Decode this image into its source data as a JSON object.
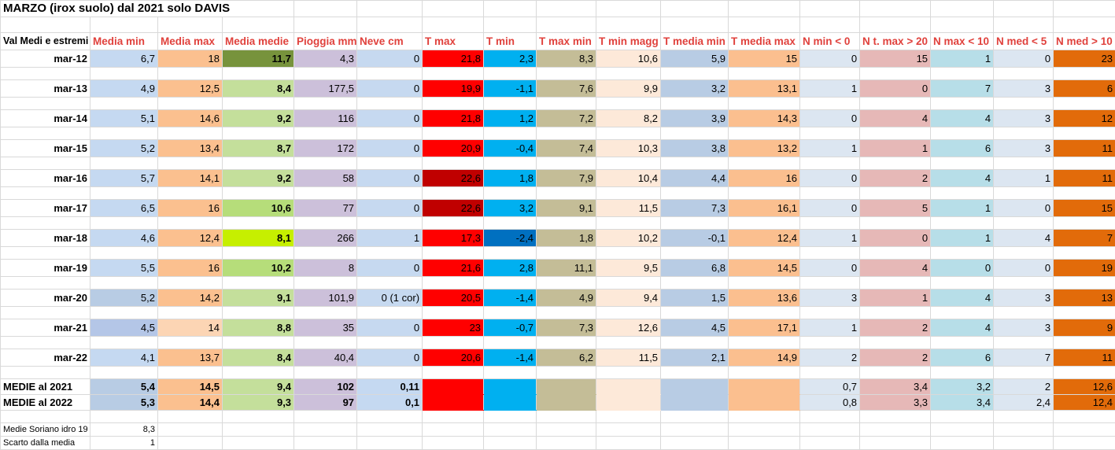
{
  "title": "MARZO (irox suolo) dal 2021 solo DAVIS",
  "row_header": "Val Medi e estremi",
  "columns": [
    "Media min",
    "Media max",
    "Media medie",
    "Pioggia mm",
    "Neve cm",
    "T max",
    "T min",
    "T max min",
    "T min magg",
    "T media min",
    "T media max",
    "N min < 0",
    "N t. max > 20",
    "N max < 10",
    "N med < 5",
    "N med > 10"
  ],
  "rows": [
    {
      "date": "mar-12",
      "v": [
        "6,7",
        "18",
        "11,7",
        "4,3",
        "0",
        "21,8",
        "2,3",
        "8,3",
        "10,6",
        "5,9",
        "15",
        "0",
        "15",
        "1",
        "0",
        "23"
      ]
    },
    {
      "date": "mar-13",
      "v": [
        "4,9",
        "12,5",
        "8,4",
        "177,5",
        "0",
        "19,9",
        "-1,1",
        "7,6",
        "9,9",
        "3,2",
        "13,1",
        "1",
        "0",
        "7",
        "3",
        "6"
      ]
    },
    {
      "date": "mar-14",
      "v": [
        "5,1",
        "14,6",
        "9,2",
        "116",
        "0",
        "21,8",
        "1,2",
        "7,2",
        "8,2",
        "3,9",
        "14,3",
        "0",
        "4",
        "4",
        "3",
        "12"
      ]
    },
    {
      "date": "mar-15",
      "v": [
        "5,2",
        "13,4",
        "8,7",
        "172",
        "0",
        "20,9",
        "-0,4",
        "7,4",
        "10,3",
        "3,8",
        "13,2",
        "1",
        "1",
        "6",
        "3",
        "11"
      ]
    },
    {
      "date": "mar-16",
      "v": [
        "5,7",
        "14,1",
        "9,2",
        "58",
        "0",
        "22,6",
        "1,8",
        "7,9",
        "10,4",
        "4,4",
        "16",
        "0",
        "2",
        "4",
        "1",
        "11"
      ]
    },
    {
      "date": "mar-17",
      "v": [
        "6,5",
        "16",
        "10,6",
        "77",
        "0",
        "22,6",
        "3,2",
        "9,1",
        "11,5",
        "7,3",
        "16,1",
        "0",
        "5",
        "1",
        "0",
        "15"
      ]
    },
    {
      "date": "mar-18",
      "v": [
        "4,6",
        "12,4",
        "8,1",
        "266",
        "1",
        "17,3",
        "-2,4",
        "1,8",
        "10,2",
        "-0,1",
        "12,4",
        "1",
        "0",
        "1",
        "4",
        "7"
      ]
    },
    {
      "date": "mar-19",
      "v": [
        "5,5",
        "16",
        "10,2",
        "8",
        "0",
        "21,6",
        "2,8",
        "11,1",
        "9,5",
        "6,8",
        "14,5",
        "0",
        "4",
        "0",
        "0",
        "19"
      ]
    },
    {
      "date": "mar-20",
      "v": [
        "5,2",
        "14,2",
        "9,1",
        "101,9",
        "0 (1 cor)",
        "20,5",
        "-1,4",
        "4,9",
        "9,4",
        "1,5",
        "13,6",
        "3",
        "1",
        "4",
        "3",
        "13"
      ]
    },
    {
      "date": "mar-21",
      "v": [
        "4,5",
        "14",
        "8,8",
        "35",
        "0",
        "23",
        "-0,7",
        "7,3",
        "12,6",
        "4,5",
        "17,1",
        "1",
        "2",
        "4",
        "3",
        "9"
      ]
    },
    {
      "date": "mar-22",
      "v": [
        "4,1",
        "13,7",
        "8,4",
        "40,4",
        "0",
        "20,6",
        "-1,4",
        "6,2",
        "11,5",
        "2,1",
        "14,9",
        "2",
        "2",
        "6",
        "7",
        "11"
      ]
    }
  ],
  "summary": [
    {
      "label": "MEDIE al 2021",
      "v": [
        "5,4",
        "14,5",
        "9,4",
        "102",
        "0,11",
        "",
        "",
        "",
        "",
        "",
        "",
        "0,7",
        "3,4",
        "3,2",
        "2",
        "12,6"
      ]
    },
    {
      "label": "MEDIE al 2022",
      "v": [
        "5,3",
        "14,4",
        "9,3",
        "97",
        "0,1",
        "",
        "",
        "",
        "",
        "",
        "",
        "0,8",
        "3,3",
        "3,4",
        "2,4",
        "12,4"
      ]
    }
  ],
  "footer": [
    {
      "label": "Medie Soriano idro 19",
      "value": "8,3"
    },
    {
      "label": "Scarto dalla media",
      "value": "1"
    }
  ],
  "colors": {
    "min": "#c5d9f1",
    "max": "#fbc08f",
    "rain": "#ccc0da",
    "snow": "#c6d9f0",
    "tmin": "#00b0f0",
    "tmaxmin": "#c4bd97",
    "tminmagg": "#fde9d9",
    "tmediamin": "#b8cce4",
    "tmediamax": "#fbbf8f",
    "nmin": "#dce6f1",
    "ntmax": "#e6b8b7",
    "nmax": "#b7dee8",
    "nmed5": "#dce6f1",
    "nmed10": "#e26b0a"
  },
  "media_medie_colors": [
    "#77933c",
    "#c4df9b",
    "#c4df9b",
    "#c4df9b",
    "#c4df9b",
    "#b6dd7a",
    "#c6ef00",
    "#b6dd7a",
    "#c4df9b",
    "#c4df9b",
    "#c4df9b"
  ],
  "tmax_colors": [
    "#ff0000",
    "#ff0000",
    "#ff0000",
    "#ff0000",
    "#c00000",
    "#c00000",
    "#ff0000",
    "#ff0000",
    "#ff0000",
    "#ff0000",
    "#ff0000"
  ],
  "tmin_colors": [
    "#00b0f0",
    "#00b0f0",
    "#00b0f0",
    "#00b0f0",
    "#00b0f0",
    "#00b0f0",
    "#0070c0",
    "#00b0f0",
    "#00b0f0",
    "#00b0f0",
    "#00b0f0"
  ],
  "min_colors": [
    "#c5d9f1",
    "#c5d9f1",
    "#c5d9f1",
    "#c5d9f1",
    "#c5d9f1",
    "#c5d9f1",
    "#c5d9f1",
    "#c5d9f1",
    "#b8cce4",
    "#b4c6e7",
    "#c5d9f1"
  ],
  "max_colors": [
    "#fbc08f",
    "#fbc08f",
    "#fbc08f",
    "#fbc08f",
    "#fbc08f",
    "#fbc08f",
    "#fbc08f",
    "#fbc08f",
    "#fbc08f",
    "#fcd5b4",
    "#fbc08f"
  ]
}
